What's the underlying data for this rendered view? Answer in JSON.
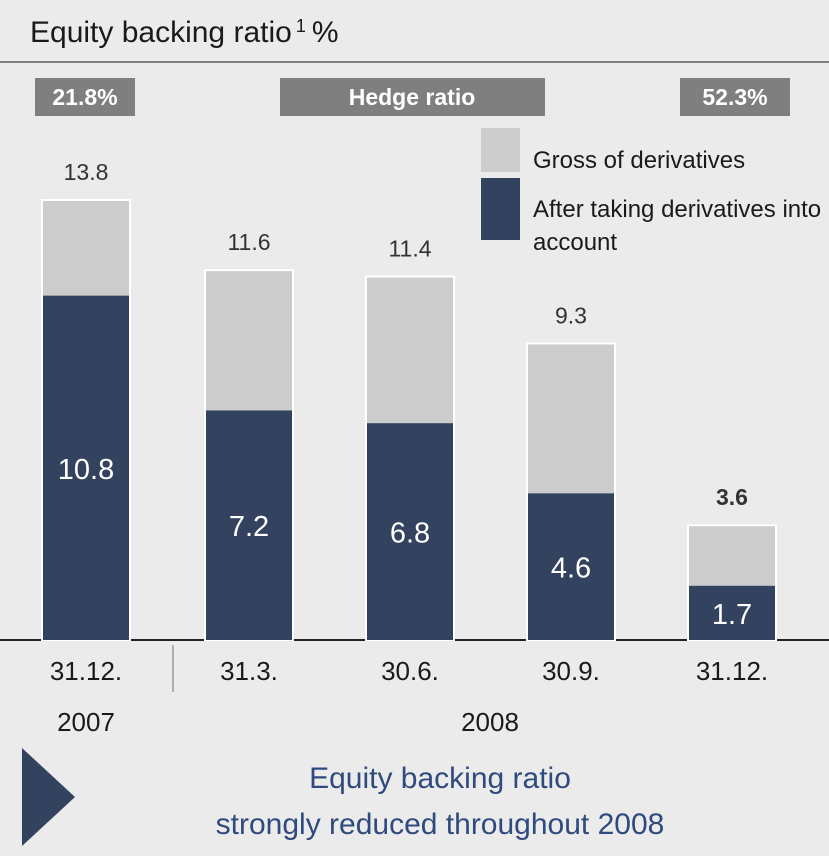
{
  "chart_data": {
    "type": "overlap-bar",
    "title": "Equity backing ratio",
    "title_footnote": "1",
    "unit": "%",
    "hedge_ratio": {
      "label": "Hedge ratio",
      "start": "21.8%",
      "end": "52.3%"
    },
    "categories": [
      "31.12.",
      "31.3.",
      "30.6.",
      "30.9.",
      "31.12."
    ],
    "years": [
      "2007",
      "2008"
    ],
    "series": [
      {
        "name": "Gross of derivatives",
        "color": "#cccccc",
        "values": [
          13.8,
          11.6,
          11.4,
          9.3,
          3.6
        ]
      },
      {
        "name": "After taking derivatives into account",
        "color": "#33425f",
        "values": [
          10.8,
          7.2,
          6.8,
          4.6,
          1.7
        ]
      }
    ],
    "callout": [
      "Equity backing ratio",
      "strongly reduced throughout 2008"
    ]
  }
}
